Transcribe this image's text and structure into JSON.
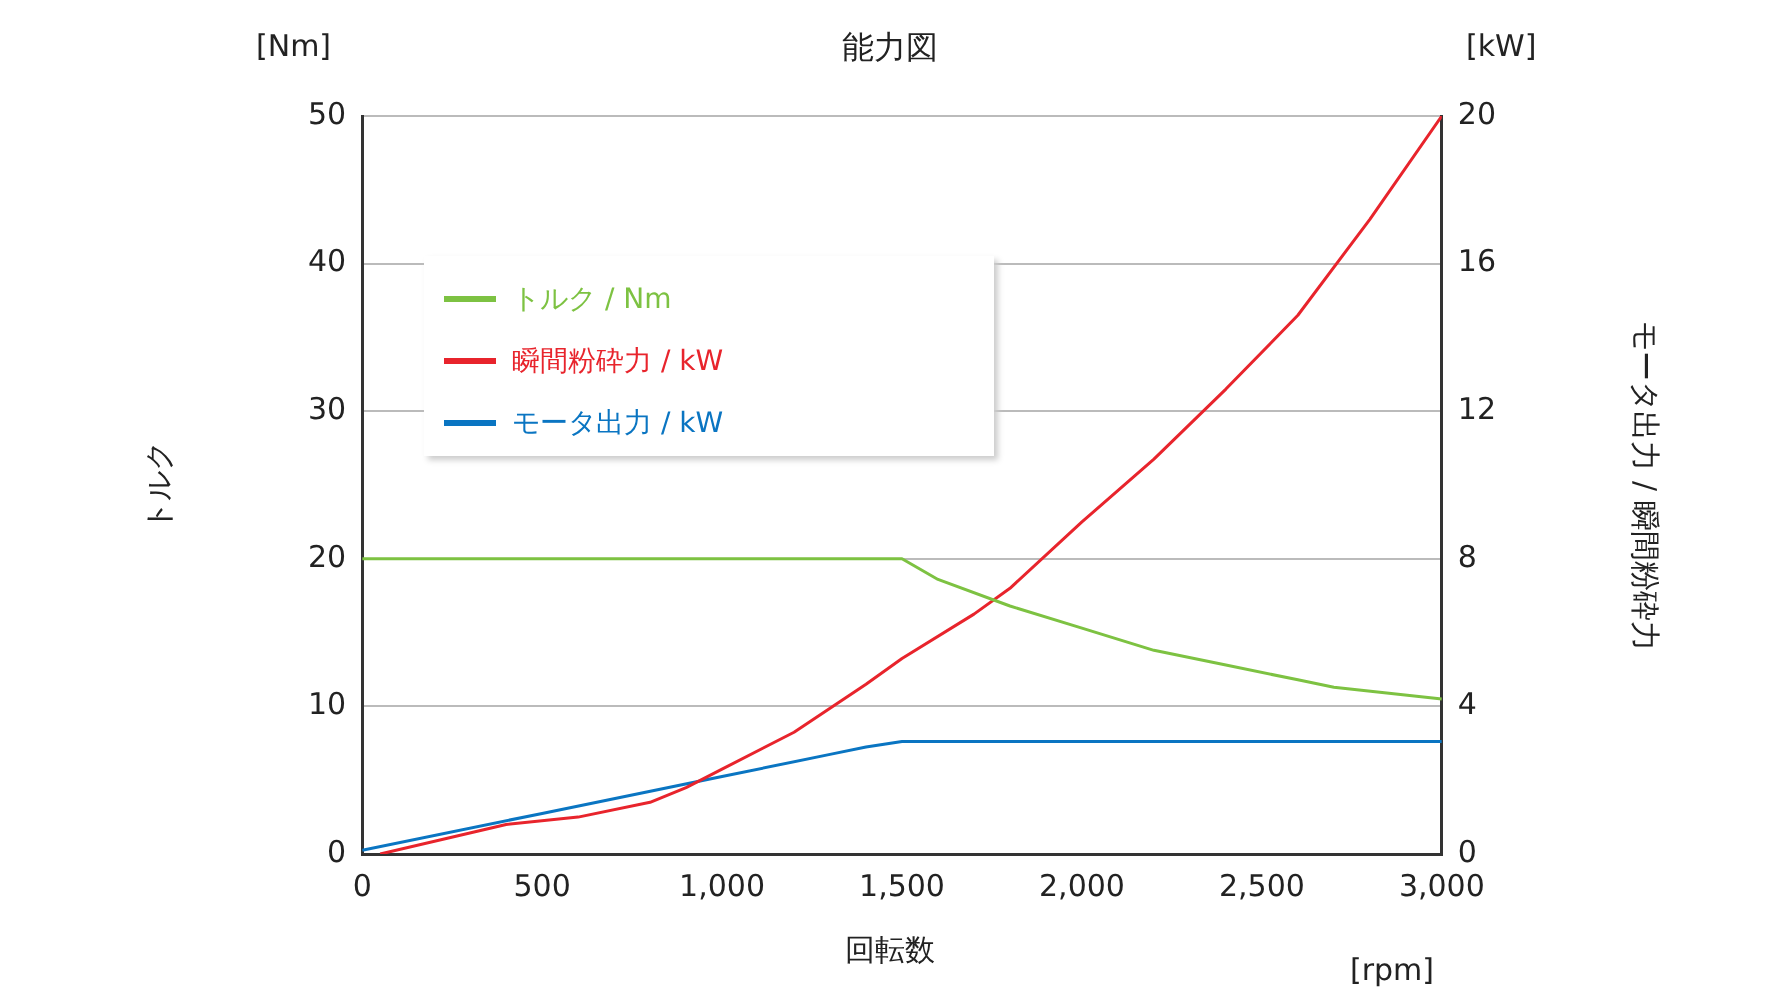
{
  "chart_data": {
    "type": "line",
    "title": "能力図",
    "xlabel": "回転数",
    "ylabel": "トルク",
    "y2label": "モータ出力 / 瞬間粉砕力",
    "annotations": [
      "[Nm]",
      "[kW]",
      "[rpm]"
    ],
    "xlim": [
      0,
      3000
    ],
    "xticks": [
      0,
      500,
      {
        "value": 1000,
        "label": "1,000"
      },
      {
        "value": 1500,
        "label": "1,500"
      },
      {
        "value": 2000,
        "label": "2,000"
      },
      {
        "value": 2500,
        "label": "2,500"
      },
      {
        "value": 3000,
        "label": "3,000"
      }
    ],
    "ylim": [
      0,
      50
    ],
    "yticks": [
      0,
      10,
      20,
      30,
      40,
      50
    ],
    "y2lim": [
      0,
      20
    ],
    "y2ticks": [
      0,
      4,
      8,
      12,
      16,
      20
    ],
    "grid": "y",
    "legend": "top left",
    "marker": "none",
    "line_style": "solid",
    "series": [
      {
        "name": "トルク / Nm",
        "color": "#7dc242",
        "x": [
          0,
          1500,
          1600,
          1800,
          2000,
          2200,
          2400,
          2600,
          2700,
          3000
        ],
        "values": [
          20,
          20,
          18.6,
          16.8,
          15.3,
          13.8,
          12.8,
          11.8,
          11.3,
          10.5
        ]
      },
      {
        "name": "瞬間粉砕力 / kW",
        "color": "#e8242c",
        "axis": "y2",
        "x": [
          50,
          400,
          600,
          800,
          900,
          1000,
          1200,
          1400,
          1500,
          1700,
          1800,
          2000,
          2200,
          2400,
          2600,
          2800,
          3000
        ],
        "values": [
          0,
          0.8,
          1.0,
          1.4,
          1.8,
          2.3,
          3.3,
          4.6,
          5.3,
          6.5,
          7.2,
          9.0,
          10.7,
          12.6,
          14.6,
          17.2,
          20
        ]
      },
      {
        "name": "モータ出力 / kW",
        "color": "#0a75c2",
        "axis": "y2",
        "x": [
          0,
          500,
          1000,
          1300,
          1400,
          1500,
          3000
        ],
        "values": [
          0.1,
          1.1,
          2.1,
          2.7,
          2.9,
          3.05,
          3.05
        ]
      }
    ]
  }
}
